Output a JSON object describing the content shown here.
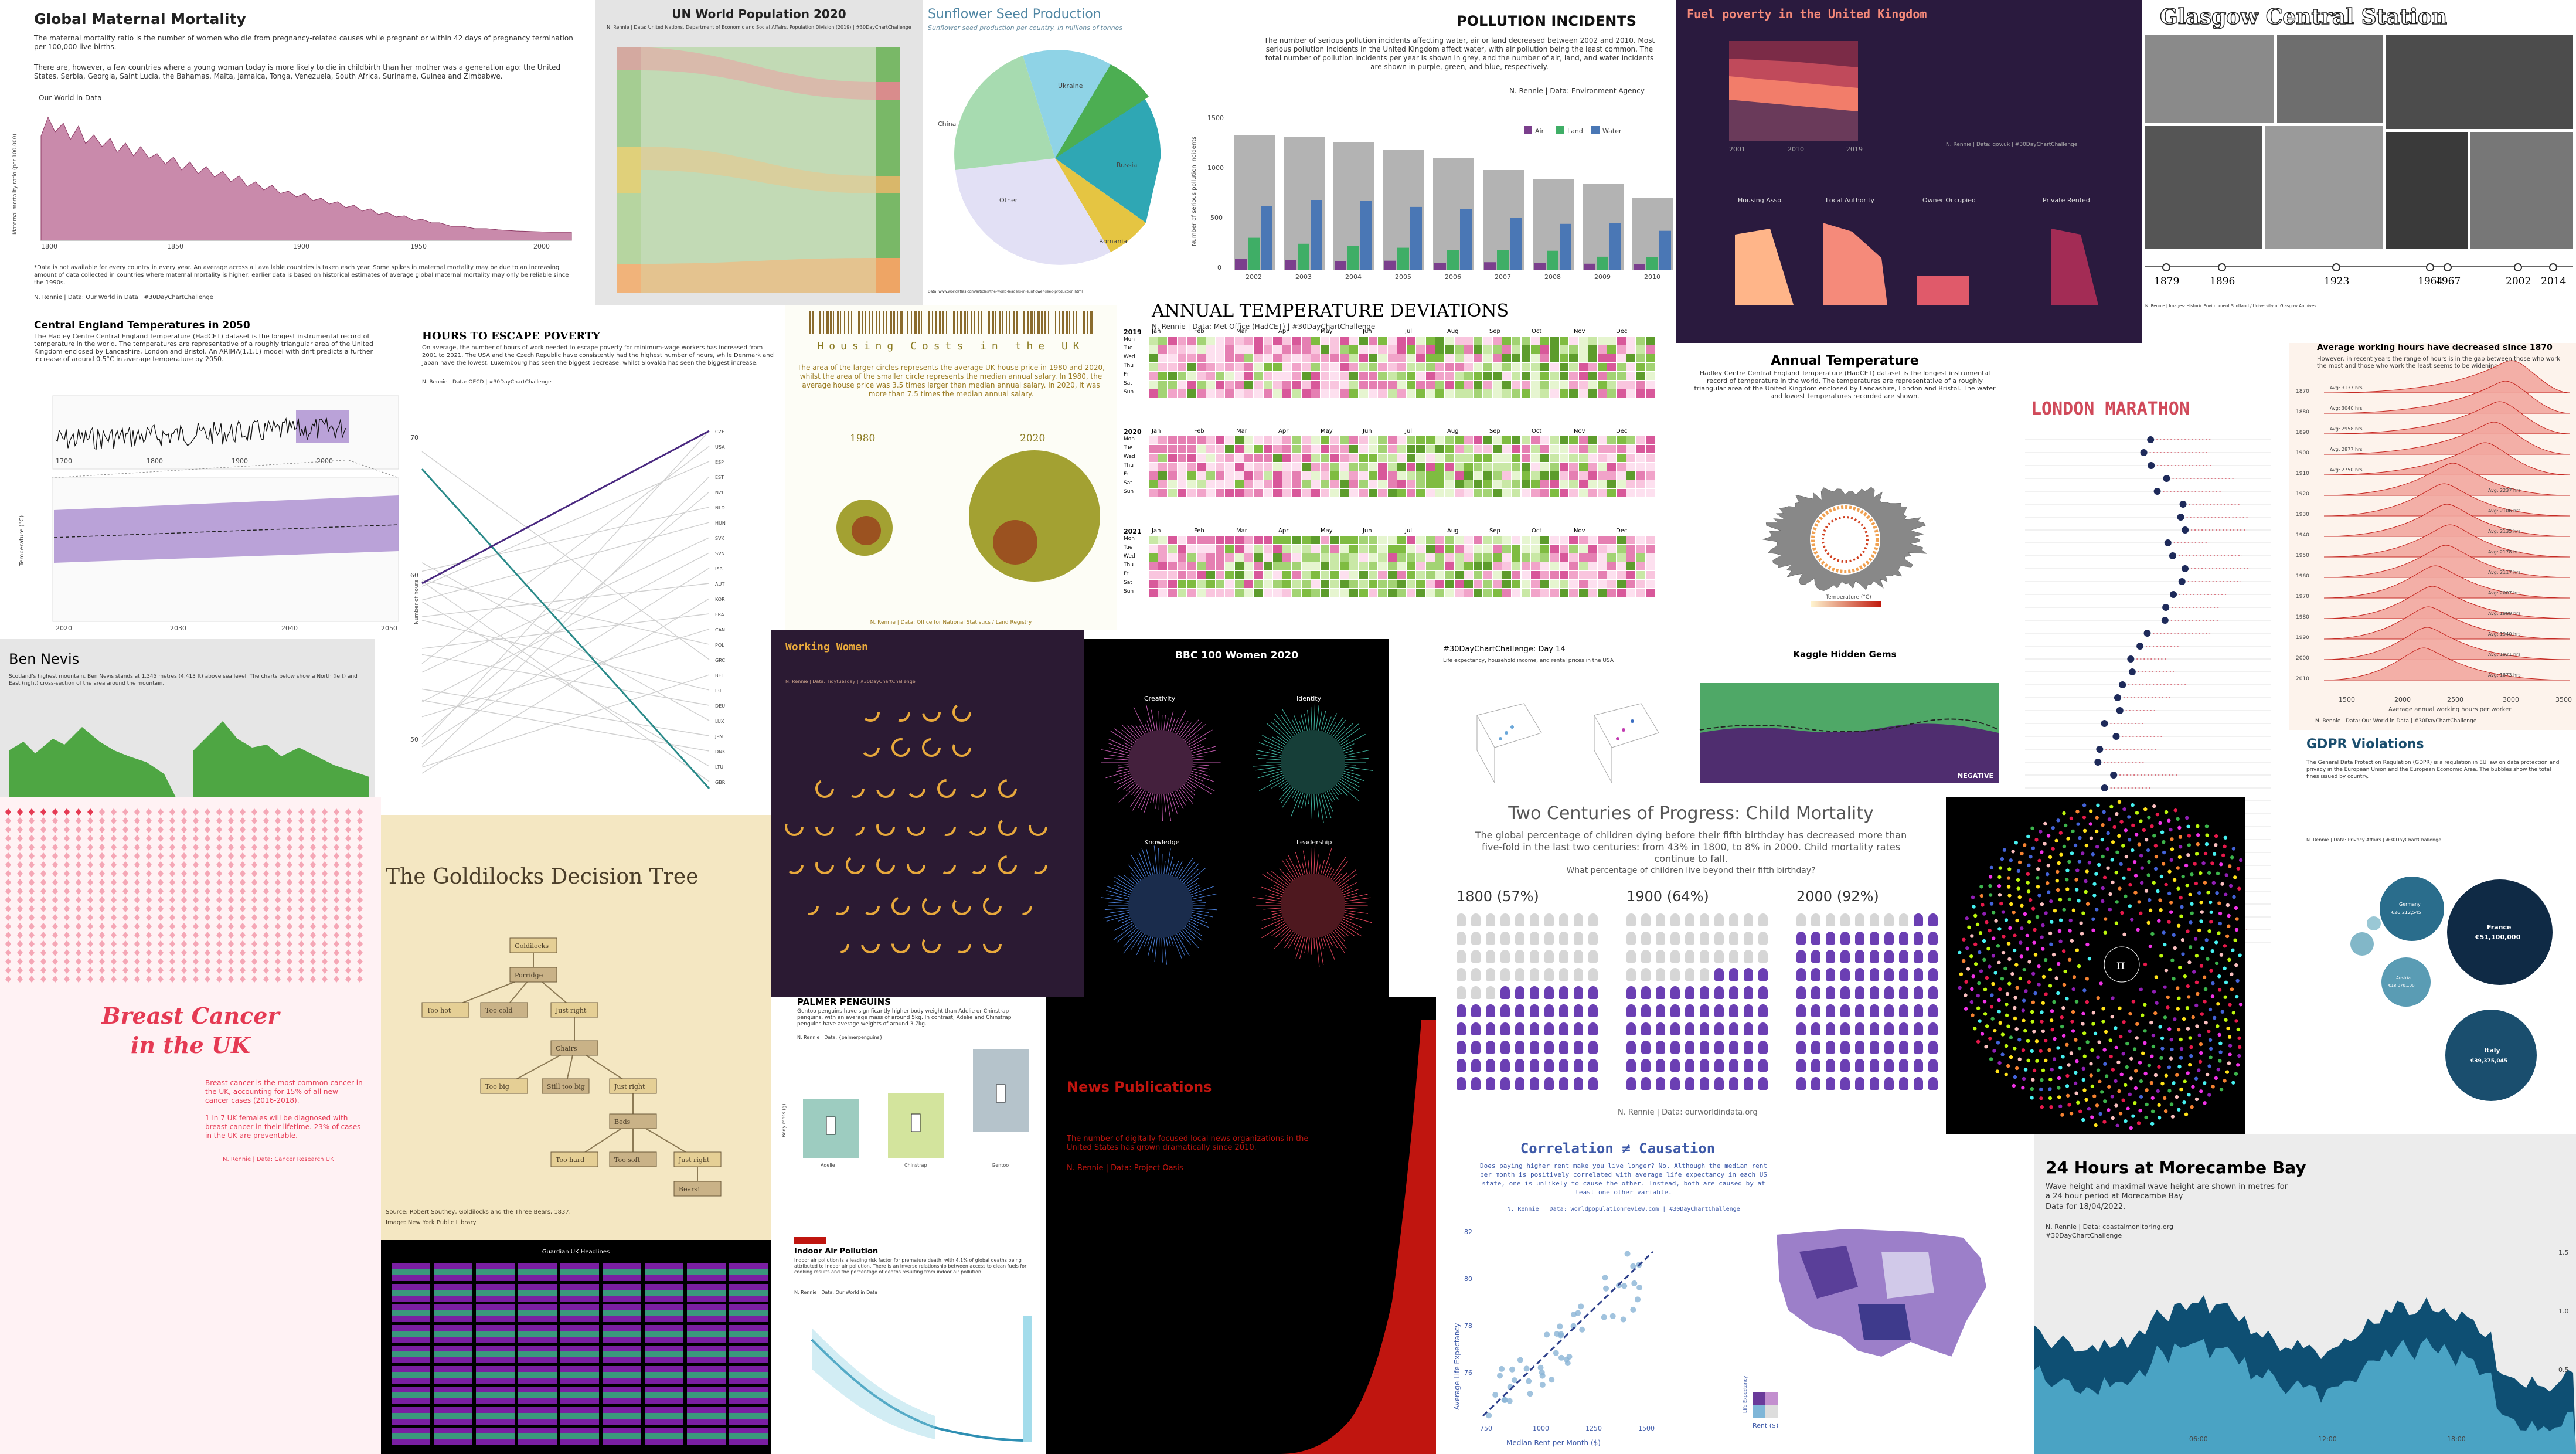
{
  "panels": {
    "maternal": {
      "title": "Global Maternal Mortality",
      "intro": "The maternal mortality ratio is the number of women who die from pregnancy-related causes while pregnant or within 42 days of pregnancy termination per 100,000 live births.",
      "note": "There are, however, a few countries where a young woman today is more likely to die in childbirth than her mother was a generation ago: the United States, Serbia, Georgia, Saint Lucia, the Bahamas, Malta, Jamaica, Tonga, Venezuela, South Africa, Suriname, Guinea and Zimbabwe.",
      "source_line": "- Our World in Data",
      "ylabel": "Maternal mortality ratio (per 100,000)",
      "ticks_x": [
        "1800",
        "1850",
        "1900",
        "1950",
        "2000"
      ],
      "footnote": "*Data is not available for every country in every year. An average across all available countries is taken each year. Some spikes in maternal mortality may be due to an increasing amount of data collected in countries where maternal mortality is higher; earlier data is based on historical estimates of average global maternal mortality may only be reliable since the 1990s.",
      "credit": "N. Rennie | Data: Our World in Data | #30DayChartChallenge"
    },
    "un_pop": {
      "title": "UN World Population 2020",
      "subtitle": "N. Rennie | Data: United Nations, Department of Economic and Social Affairs, Population Division (2019) | #30DayChartChallenge"
    },
    "sunflower": {
      "title": "Sunflower Seed Production",
      "subtitle": "Sunflower seed production per country, in millions of tonnes",
      "slices": [
        "Ukraine",
        "Russia",
        "Romania",
        "Other",
        "China"
      ],
      "credit": "Data: www.worldatlas.com/articles/the-world-leaders-in-sunflower-seed-production.html"
    },
    "pollution": {
      "title": "POLLUTION INCIDENTS",
      "intro": "The number of serious pollution incidents affecting water, air or land decreased between 2002 and 2010. Most serious pollution incidents in the United Kingdom affect water, with air pollution being the least common. The total number of pollution incidents per year is shown in grey, and the number of air, land, and water incidents are shown in purple, green, and blue, respectively.",
      "credit": "N. Rennie | Data: Environment Agency",
      "legend": [
        "Air",
        "Land",
        "Water"
      ],
      "ylabel": "Number of serious pollution incidents",
      "years": [
        "2002",
        "2003",
        "2004",
        "2005",
        "2006",
        "2007",
        "2008",
        "2009",
        "2010"
      ],
      "yticks": [
        "1500",
        "1000",
        "500",
        "0"
      ]
    },
    "fuel": {
      "title": "Fuel poverty in the United Kingdom",
      "years": [
        "2001",
        "2010",
        "2019"
      ],
      "groups": [
        "Housing Asso.",
        "Local Authority",
        "Owner Occupied",
        "Private Rented"
      ],
      "credit": "N. Rennie | Data: gov.uk | #30DayChartChallenge"
    },
    "glasgow": {
      "title": "Glasgow Central Station",
      "years": [
        "1879",
        "1896",
        "1923",
        "1964",
        "1967",
        "2002",
        "2014"
      ],
      "credit": "N. Rennie | Images: Historic Environment Scotland / University of Glasgow Archives"
    },
    "cet": {
      "title": "Central England Temperatures in 2050",
      "intro": "The Hadley Centre Central England Temperature (HadCET) dataset is the longest instrumental record of temperature in the world. The temperatures are representative of a roughly triangular area of the United Kingdom enclosed by Lancashire, London and Bristol. An ARIMA(1,1,1) model with drift predicts a further increase of around 0.5°C in average temperature by 2050.",
      "ticks_top": [
        "1700",
        "1800",
        "1900",
        "2000"
      ],
      "ticks_bottom": [
        "2020",
        "2030",
        "2040",
        "2050"
      ],
      "ylabel": "Temperature (°C)"
    },
    "poverty": {
      "title": "HOURS TO ESCAPE POVERTY",
      "intro": "On average, the number of hours of work needed to escape poverty for minimum-wage workers has increased from 2001 to 2021. The USA and the Czech Republic have consistently had the highest number of hours, while Denmark and Japan have the lowest. Luxembourg has seen the biggest decrease, whilst Slovakia has seen the biggest increase.",
      "credit": "N. Rennie | Data: OECD | #30DayChartChallenge",
      "ylabel": "Number of hours",
      "ticks_y": [
        "70",
        "60",
        "50"
      ],
      "ticks_x": [
        "2001",
        "2021"
      ],
      "countries": [
        "CZE",
        "USA",
        "ESP",
        "EST",
        "NZL",
        "NLD",
        "HUN",
        "SVK",
        "SVN",
        "ISR",
        "AUT",
        "KOR",
        "FRA",
        "CAN",
        "POL",
        "GRC",
        "BEL",
        "IRL",
        "DEU",
        "LUX",
        "JPN",
        "DNK",
        "LTU",
        "GBR"
      ]
    },
    "housing": {
      "title": "Housing Costs in the UK",
      "intro": "The area of the larger circles represents the average UK house price in 1980 and 2020, whilst the area of the smaller circle represents the median annual salary. In 1980, the average house price was 3.5 times larger than median annual salary. In 2020, it was more than 7.5 times the median annual salary.",
      "year_a": "1980",
      "year_b": "2020",
      "credit": "N. Rennie | Data: Office for National Statistics / Land Registry"
    },
    "temp_dev": {
      "title": "ANNUAL TEMPERATURE DEVIATIONS",
      "credit": "N. Rennie | Data: Met Office (HadCET) | #30DayChartChallenge",
      "months": [
        "Jan",
        "Feb",
        "Mar",
        "Apr",
        "May",
        "Jun",
        "Jul",
        "Aug",
        "Sep",
        "Oct",
        "Nov",
        "Dec"
      ],
      "years": [
        "2019",
        "2020",
        "2021"
      ],
      "days": [
        "Mon",
        "Tue",
        "Wed",
        "Thu",
        "Fri",
        "Sat",
        "Sun"
      ]
    },
    "annual_temp": {
      "title": "Annual Temperature",
      "intro": "Hadley Centre Central England Temperature (HadCET) dataset is the longest instrumental record of temperature in the world. The temperatures are representative of a roughly triangular area of the United Kingdom enclosed by Lancashire, London and Bristol. The water and lowest temperatures recorded are shown.",
      "legend": "Temperature (°C)"
    },
    "marathon": {
      "title": "LONDON MARATHON"
    },
    "working_hours": {
      "title": "Average working hours have decreased since 1870",
      "subtitle": "However, in recent years the range of hours is in the gap between those who work the most and those who work the least seems to be widening.",
      "years": [
        "1870",
        "1880",
        "1890",
        "1900",
        "1910",
        "1920",
        "1930",
        "1940",
        "1950",
        "1960",
        "1970",
        "1980",
        "1990",
        "2000",
        "2010"
      ],
      "avgs": [
        "Avg: 3137 hrs",
        "Avg: 3040 hrs",
        "Avg: 2958 hrs",
        "Avg: 2877 hrs",
        "Avg: 2750 hrs",
        "Avg: 2237 hrs",
        "Avg: 2106 hrs",
        "Avg: 2135 hrs",
        "Avg: 2178 hrs",
        "Avg: 2117 hrs",
        "Avg: 2007 hrs",
        "Avg: 1989 hrs",
        "Avg: 1940 hrs",
        "Avg: 1921 hrs",
        "Avg: 1873 hrs"
      ],
      "ticks_x": [
        "1500",
        "2000",
        "2500",
        "3000",
        "3500"
      ],
      "xlabel": "Average annual working hours per worker",
      "credit": "N. Rennie | Data: Our World in Data | #30DayChartChallenge"
    },
    "ben_nevis": {
      "title": "Ben Nevis",
      "intro": "Scotland's highest mountain, Ben Nevis stands at 1,345 metres (4,413 ft) above sea level. The charts below show a North (left) and East (right) cross-section of the area around the mountain."
    },
    "working_women": {
      "title": "Working Women",
      "credit": "N. Rennie | Data: Tidytuesday | #30DayChartChallenge"
    },
    "bbc": {
      "title": "BBC 100 Women 2020",
      "labels": [
        "Creativity",
        "Identity",
        "Knowledge",
        "Leadership"
      ]
    },
    "day14": {
      "title": "#30DayChartChallenge: Day 14",
      "subtitle": "Life expectancy, household income, and rental prices in the USA"
    },
    "kaggle": {
      "title": "Kaggle Hidden Gems",
      "label_neg": "NEGATIVE"
    },
    "breast": {
      "title_a": "Breast Cancer",
      "title_b": "in the UK",
      "text_a": "Breast cancer is the most common cancer in the UK, accounting for 15% of all new cancer cases (2016-2018).",
      "text_b": "1 in 7 UK females will be diagnosed with breast cancer in their lifetime. 23% of cases in the UK are preventable.",
      "credit": "N. Rennie | Data: Cancer Research UK"
    },
    "goldilocks": {
      "title": "The Goldilocks Decision Tree",
      "nodes": [
        "Goldilocks",
        "Porridge",
        "Too hot",
        "Too cold",
        "Just right",
        "Chairs",
        "Too big",
        "Still too big",
        "Just right",
        "Beds",
        "Too hard",
        "Too soft",
        "Just right",
        "Bears!"
      ],
      "credit_a": "Source: Robert Southey, Goldilocks and the Three Bears, 1837.",
      "credit_b": "Image: New York Public Library"
    },
    "penguins": {
      "title": "PALMER PENGUINS",
      "intro": "Gentoo penguins have significantly higher body weight than Adelie or Chinstrap penguins, with an average mass of around 5kg. In contrast, Adelie and Chinstrap penguins have average weights of around 3.7kg.",
      "credit": "N. Rennie | Data: {palmerpenguins}",
      "ylabel": "Body mass (g)",
      "species": [
        "Adelie",
        "Chinstrap",
        "Gentoo"
      ]
    },
    "news": {
      "title": "News Publications",
      "intro": "The number of digitally-focused local news organizations in the United States has grown dramatically since 2010.",
      "credit": "N. Rennie | Data: Project Oasis"
    },
    "child_mort": {
      "title": "Two Centuries of Progress: Child Mortality",
      "intro": "The global percentage of children dying before their fifth birthday has decreased more than five-fold in the last two centuries: from 43% in 1800, to 8% in 2000. Child mortality rates continue to fall.",
      "question": "What percentage of children live beyond their fifth birthday?",
      "groups": [
        {
          "label": "1800 (57%)",
          "filled": 57
        },
        {
          "label": "1900 (64%)",
          "filled": 64
        },
        {
          "label": "2000 (92%)",
          "filled": 92
        }
      ],
      "credit": "N. Rennie | Data: ourworldindata.org"
    },
    "pi": {
      "symbol": "π"
    },
    "gdpr": {
      "title": "GDPR Violations",
      "intro": "The General Data Protection Regulation (GDPR) is a regulation in EU law on data protection and privacy in the European Union and the European Economic Area. The bubbles show the total fines issued by country.",
      "credit": "N. Rennie | Data: Privacy Affairs | #30DayChartChallenge",
      "bubbles": [
        {
          "name": "France",
          "value": "€51,100,000"
        },
        {
          "name": "Italy",
          "value": "€39,375,045"
        },
        {
          "name": "Germany",
          "value": "€26,212,545"
        },
        {
          "name": "Austria",
          "value": "€18,070,100"
        }
      ]
    },
    "indoor": {
      "title": "Indoor Air Pollution",
      "intro": "Indoor air pollution is a leading risk factor for premature death, with 4.1% of global deaths being attributed to indoor air pollution. There is an inverse relationship between access to clean fuels for cooking results and the percentage of deaths resulting from indoor air pollution.",
      "credit": "N. Rennie | Data: Our World in Data"
    },
    "guardian": {
      "title": "Guardian UK Headlines"
    },
    "correlation": {
      "title": "Correlation ≠ Causation",
      "intro": "Does paying higher rent make you live longer? No. Although the median rent per month is positively correlated with average life expectancy in each US state, one is unlikely to cause the other. Instead, both are caused by at least one other variable.",
      "credit": "N. Rennie | Data: worldpopulationreview.com | #30DayChartChallenge",
      "xlabel": "Median Rent per Month ($)",
      "ylabel": "Average Life Expectancy",
      "ticks_x": [
        "750",
        "1000",
        "1250",
        "1500"
      ],
      "ticks_y": [
        "82",
        "80",
        "78",
        "76"
      ],
      "legend_x": "Rent ($)",
      "legend_y": "Life Expectancy"
    },
    "morecambe": {
      "title": "24 Hours at Morecambe Bay",
      "intro": "Wave height and maximal wave height are shown in metres for a 24 hour period at Morecambe Bay",
      "date": "Data for 18/04/2022.",
      "credit_a": "N. Rennie | Data: coastalmonitoring.org",
      "credit_b": "#30DayChartChallenge",
      "ticks_x": [
        "06:00",
        "12:00",
        "18:00"
      ],
      "ticks_y": [
        "1.5",
        "1.0",
        "0.5"
      ]
    }
  },
  "colors": {
    "maternal": "#b05c86",
    "pollution_air": "#7b3f8d",
    "pollution_land": "#3fae66",
    "pollution_water": "#4a77b5",
    "fuel_bg": "#2a1a3e",
    "working_bg": "#2b1a33",
    "news_bg": "#000000",
    "news_red": "#c0150f",
    "gdpr": "#1a4e6e",
    "morecambe": "#1b6e8c"
  }
}
